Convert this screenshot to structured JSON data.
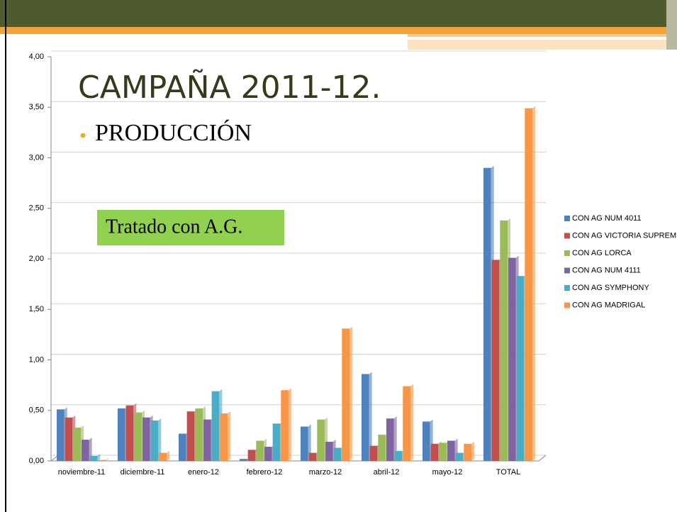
{
  "chart_data": {
    "type": "bar",
    "title": "CAMPAÑA 2011-12.",
    "subtitle": "PRODUCCIÓN",
    "annotation": "Tratado con A.G.",
    "categories": [
      "noviembre-11",
      "diciembre-11",
      "enero-12",
      "febrero-12",
      "marzo-12",
      "abril-12",
      "mayo-12",
      "TOTAL"
    ],
    "series": [
      {
        "name": "CON AG NUM 4011",
        "color": "#4f81bd",
        "values": [
          0.51,
          0.52,
          0.27,
          0.02,
          0.34,
          0.86,
          0.39,
          2.9
        ]
      },
      {
        "name": "CON AG VICTORIA SUPREM",
        "color": "#c0504d",
        "values": [
          0.43,
          0.55,
          0.49,
          0.11,
          0.08,
          0.15,
          0.17,
          1.99
        ]
      },
      {
        "name": "CON AG LORCA",
        "color": "#9bbb59",
        "values": [
          0.33,
          0.48,
          0.52,
          0.2,
          0.41,
          0.26,
          0.18,
          2.38
        ]
      },
      {
        "name": "CON AG NUM 4111",
        "color": "#8064a2",
        "values": [
          0.21,
          0.43,
          0.41,
          0.14,
          0.19,
          0.42,
          0.2,
          2.01
        ]
      },
      {
        "name": "CON AG SYMPHONY",
        "color": "#4bacc6",
        "values": [
          0.05,
          0.4,
          0.69,
          0.37,
          0.13,
          0.1,
          0.08,
          1.83
        ]
      },
      {
        "name": "CON AG MADRIGAL",
        "color": "#f79646",
        "values": [
          0.01,
          0.08,
          0.47,
          0.7,
          1.31,
          0.74,
          0.17,
          3.49
        ]
      }
    ],
    "ylim": [
      0,
      4
    ],
    "yticks": [
      {
        "value": 0,
        "label": "0,00"
      },
      {
        "value": 0.5,
        "label": "0,50"
      },
      {
        "value": 1,
        "label": "1,00"
      },
      {
        "value": 1.5,
        "label": "1,50"
      },
      {
        "value": 2,
        "label": "2,00"
      },
      {
        "value": 2.5,
        "label": "2,50"
      },
      {
        "value": 3,
        "label": "3,00"
      },
      {
        "value": 3.5,
        "label": "3,50"
      },
      {
        "value": 4,
        "label": "4,00"
      }
    ],
    "grid": true,
    "legend": "right"
  }
}
